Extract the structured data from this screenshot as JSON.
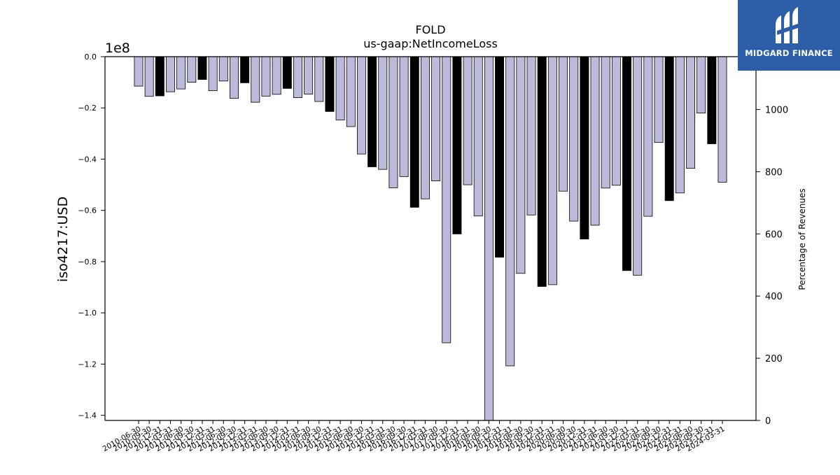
{
  "chart_data": {
    "type": "bar",
    "title": "FOLD",
    "subtitle": "us-gaap:NetIncomeLoss",
    "ylabel": "iso4217:USD",
    "y_offset_label": "1e8",
    "y2label": "Percentage of Revenues",
    "ylim": [
      -1.42,
      0.0
    ],
    "y_ticks": [
      "0.0",
      "−0.2",
      "−0.4",
      "−0.6",
      "−0.8",
      "−1.0",
      "−1.2",
      "−1.4"
    ],
    "y2lim": [
      0,
      1170
    ],
    "y2_ticks": [
      "0",
      "200",
      "400",
      "600",
      "800",
      "1000"
    ],
    "grid": false,
    "categories": [
      "2010-06-30",
      "2010-09-30",
      "2010-12-31",
      "2011-03-31",
      "2011-06-30",
      "2011-09-30",
      "2011-12-31",
      "2012-03-31",
      "2012-06-30",
      "2012-09-30",
      "2012-12-31",
      "2013-03-31",
      "2013-06-30",
      "2013-09-30",
      "2013-12-31",
      "2014-03-31",
      "2014-06-30",
      "2014-09-30",
      "2014-12-31",
      "2015-03-31",
      "2015-06-30",
      "2015-09-30",
      "2015-12-31",
      "2016-03-31",
      "2016-06-30",
      "2016-09-30",
      "2016-12-31",
      "2017-03-31",
      "2017-06-30",
      "2017-09-30",
      "2017-12-31",
      "2018-03-31",
      "2018-06-30",
      "2018-09-30",
      "2018-12-31",
      "2019-03-31",
      "2019-06-30",
      "2019-09-30",
      "2019-12-31",
      "2020-03-31",
      "2020-06-30",
      "2020-09-30",
      "2020-12-31",
      "2021-03-31",
      "2021-06-30",
      "2021-09-30",
      "2021-12-31",
      "2022-03-31",
      "2022-06-30",
      "2022-09-30",
      "2022-12-31",
      "2023-03-31",
      "2023-06-30",
      "2023-09-30",
      "2023-12-31",
      "2024-03-31"
    ],
    "values": [
      -0.115,
      -0.155,
      -0.153,
      -0.137,
      -0.126,
      -0.1,
      -0.089,
      -0.133,
      -0.095,
      -0.163,
      -0.102,
      -0.178,
      -0.154,
      -0.147,
      -0.124,
      -0.16,
      -0.146,
      -0.175,
      -0.214,
      -0.247,
      -0.273,
      -0.38,
      -0.43,
      -0.44,
      -0.512,
      -0.468,
      -0.588,
      -0.555,
      -0.485,
      -1.117,
      -0.692,
      -0.5,
      -0.622,
      -1.42,
      -0.783,
      -1.207,
      -0.846,
      -0.618,
      -0.897,
      -0.89,
      -0.525,
      -0.642,
      -0.712,
      -0.658,
      -0.513,
      -0.502,
      -0.835,
      -0.853,
      -0.623,
      -0.335,
      -0.562,
      -0.532,
      -0.436,
      -0.22,
      -0.34,
      -0.49
    ],
    "annual_indices": [
      2,
      6,
      10,
      14,
      18,
      22,
      26,
      30,
      34,
      38,
      42,
      46,
      50,
      54
    ],
    "colors": {
      "quarterly": "#bcbadb",
      "annual": "#000000",
      "edge": "#000000",
      "axis": "#000000"
    }
  },
  "logo": {
    "text": "MIDGARD FINANCE",
    "background": "#2d5fa9"
  }
}
